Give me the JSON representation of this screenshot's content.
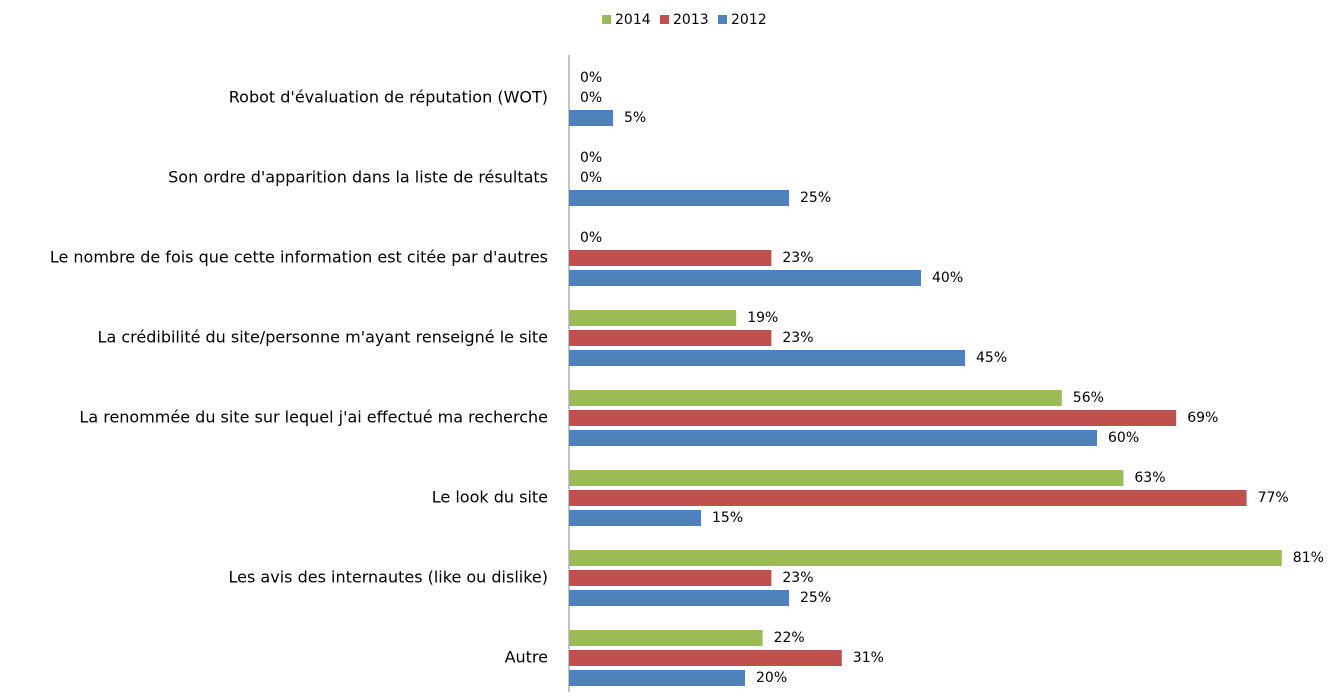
{
  "chart_data": {
    "type": "hbar",
    "categories": [
      "Robot d'évaluation de réputation (WOT)",
      "Son ordre d'apparition dans la liste de résultats",
      "Le nombre de fois que cette information est citée par d'autres",
      "La crédibilité du site/personne m'ayant renseigné le site",
      "La renommée du site sur lequel j'ai effectué ma recherche",
      "Le look du site",
      "Les avis des internautes (like ou dislike)",
      "Autre"
    ],
    "series": [
      {
        "name": "2014",
        "color": "#9bbb59",
        "values": [
          0,
          0,
          0,
          19,
          56,
          63,
          81,
          22
        ],
        "value_labels": [
          "0%",
          "0%",
          "0%",
          "19%",
          "56%",
          "63%",
          "81%",
          "22%"
        ]
      },
      {
        "name": "2013",
        "color": "#c0504d",
        "values": [
          0,
          0,
          23,
          23,
          69,
          77,
          23,
          31
        ],
        "value_labels": [
          "0%",
          "0%",
          "23%",
          "23%",
          "69%",
          "77%",
          "23%",
          "31%"
        ]
      },
      {
        "name": "2012",
        "color": "#4f81bd",
        "values": [
          5,
          25,
          40,
          45,
          60,
          15,
          25,
          20
        ],
        "value_labels": [
          "5%",
          "25%",
          "40%",
          "45%",
          "60%",
          "15%",
          "25%",
          "20%"
        ]
      }
    ],
    "xlim": [
      0,
      85
    ],
    "legend": "top"
  }
}
